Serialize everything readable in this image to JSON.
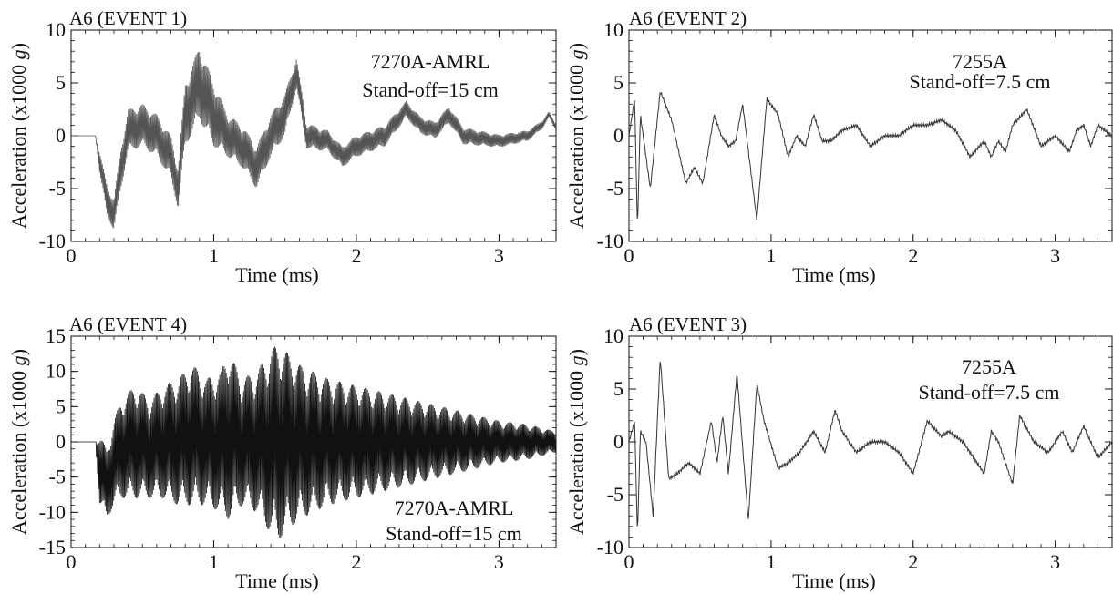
{
  "chart_data": [
    {
      "type": "line",
      "title": "A6 (EVENT 1)",
      "xlabel": "Time (ms)",
      "ylabel_main": "Acceleration (x1000 ",
      "ylabel_unit": "g",
      "ylabel_close": ")",
      "xlim": [
        0,
        3.4
      ],
      "ylim": [
        -10,
        10
      ],
      "xticks": [
        0,
        1,
        2,
        3
      ],
      "yticks": [
        -10,
        -5,
        0,
        5,
        10
      ],
      "annotation": [
        "7270A-AMRL",
        "Stand-off=15 cm"
      ],
      "series": [
        {
          "line_color": "#555555",
          "style": "dense",
          "x": [
            0,
            0.17,
            0.2,
            0.25,
            0.3,
            0.35,
            0.4,
            0.5,
            0.6,
            0.7,
            0.75,
            0.8,
            0.9,
            1.0,
            1.1,
            1.2,
            1.3,
            1.4,
            1.5,
            1.58,
            1.65,
            1.8,
            1.9,
            2.0,
            2.2,
            2.35,
            2.45,
            2.55,
            2.65,
            2.75,
            3.0,
            3.2,
            3.3,
            3.35,
            3.4
          ],
          "y": [
            0,
            0,
            -2.5,
            -6,
            -7.5,
            -3,
            0.5,
            1,
            0,
            -2,
            -5,
            2,
            5,
            2,
            0,
            -1,
            -3,
            0,
            2,
            6,
            0,
            -0.5,
            -2,
            -1,
            0,
            2.5,
            1,
            0.5,
            2,
            0,
            -0.5,
            0,
            1,
            2,
            0.8
          ],
          "amp": [
            0,
            0,
            1,
            1.5,
            1.5,
            2,
            2,
            2,
            2,
            2,
            2,
            3,
            3.5,
            3,
            2,
            2,
            2,
            2,
            2,
            1.5,
            1.2,
            1,
            1,
            1,
            1,
            0.8,
            0.8,
            0.8,
            0.8,
            0.8,
            0.6,
            0.5,
            0.4,
            0.3,
            0.3
          ]
        }
      ]
    },
    {
      "type": "line",
      "title": "A6 (EVENT 2)",
      "xlabel": "Time (ms)",
      "ylabel_main": "Acceleration (x1000 ",
      "ylabel_unit": "g",
      "ylabel_close": ")",
      "xlim": [
        0,
        3.4
      ],
      "ylim": [
        -10,
        10
      ],
      "xticks": [
        0,
        1,
        2,
        3
      ],
      "yticks": [
        -10,
        -5,
        0,
        5,
        10
      ],
      "annotation": [
        "7255A",
        "Stand-off=7.5 cm"
      ],
      "series": [
        {
          "line_color": "#333333",
          "style": "smooth",
          "x": [
            0,
            0.04,
            0.06,
            0.08,
            0.1,
            0.15,
            0.22,
            0.3,
            0.4,
            0.46,
            0.52,
            0.6,
            0.65,
            0.7,
            0.75,
            0.8,
            0.9,
            0.97,
            1.05,
            1.12,
            1.18,
            1.24,
            1.3,
            1.36,
            1.42,
            1.5,
            1.6,
            1.7,
            1.8,
            1.9,
            2.0,
            2.1,
            2.2,
            2.3,
            2.4,
            2.5,
            2.55,
            2.6,
            2.65,
            2.7,
            2.8,
            2.9,
            3.0,
            3.1,
            3.15,
            3.2,
            3.25,
            3.3,
            3.4
          ],
          "y": [
            0,
            3.5,
            -9,
            2,
            0,
            -5,
            4.2,
            1.5,
            -4.5,
            -3,
            -4.5,
            2,
            0,
            -1,
            -0.5,
            3,
            -8,
            3.5,
            2,
            -2,
            0,
            -1,
            2,
            -0.5,
            -0.5,
            0.5,
            1,
            -1,
            0,
            0,
            1,
            1,
            1.5,
            0.5,
            -2,
            -0.5,
            -2,
            -0.5,
            -1.5,
            1,
            2.5,
            -1,
            0,
            -1.5,
            0.5,
            1,
            -1,
            1,
            0
          ]
        }
      ]
    },
    {
      "type": "line",
      "title": "A6 (EVENT 4)",
      "xlabel": "Time (ms)",
      "ylabel_main": "Acceleration (x1000 ",
      "ylabel_unit": "g",
      "ylabel_close": ")",
      "xlim": [
        0,
        3.4
      ],
      "ylim": [
        -15,
        15
      ],
      "xticks": [
        0,
        1,
        2,
        3
      ],
      "yticks": [
        -15,
        -10,
        -5,
        0,
        5,
        10,
        15
      ],
      "annotation": [
        "7270A-AMRL",
        "Stand-off=15 cm"
      ],
      "series": [
        {
          "line_color": "#111111",
          "style": "dense",
          "x": [
            0,
            0.17,
            0.2,
            0.25,
            0.3,
            0.35,
            0.45,
            0.55,
            0.65,
            0.75,
            0.85,
            0.95,
            1.05,
            1.1,
            1.2,
            1.3,
            1.4,
            1.45,
            1.6,
            1.8,
            2.0,
            2.2,
            2.4,
            2.6,
            2.8,
            3.0,
            3.2,
            3.3,
            3.4
          ],
          "y": [
            0,
            0,
            -4,
            -6,
            -3,
            -1,
            0,
            -1,
            0,
            0,
            1,
            0,
            0,
            1,
            0,
            0,
            0,
            0,
            0,
            0,
            0,
            0,
            0,
            0,
            0,
            0,
            0,
            0,
            0
          ],
          "amp": [
            0,
            0,
            5,
            5,
            6,
            7,
            8,
            7,
            8,
            9,
            10,
            9,
            10,
            12,
            9,
            10,
            13,
            14,
            11,
            9,
            8,
            7,
            6,
            5,
            4,
            3,
            2.5,
            2,
            1.5
          ]
        }
      ]
    },
    {
      "type": "line",
      "title": "A6 (EVENT 3)",
      "xlabel": "Time (ms)",
      "ylabel_main": "Acceleration (x1000 ",
      "ylabel_unit": "g",
      "ylabel_close": ")",
      "xlim": [
        0,
        3.4
      ],
      "ylim": [
        -10,
        10
      ],
      "xticks": [
        0,
        1,
        2,
        3
      ],
      "yticks": [
        -10,
        -5,
        0,
        5,
        10
      ],
      "annotation": [
        "7255A",
        "Stand-off=7.5 cm"
      ],
      "series": [
        {
          "line_color": "#333333",
          "style": "smooth",
          "x": [
            0,
            0.04,
            0.06,
            0.08,
            0.12,
            0.17,
            0.22,
            0.28,
            0.34,
            0.42,
            0.5,
            0.58,
            0.62,
            0.66,
            0.7,
            0.76,
            0.84,
            0.9,
            0.95,
            1.05,
            1.12,
            1.2,
            1.3,
            1.38,
            1.45,
            1.5,
            1.6,
            1.7,
            1.8,
            1.9,
            2.0,
            2.1,
            2.2,
            2.25,
            2.35,
            2.5,
            2.55,
            2.6,
            2.7,
            2.75,
            2.85,
            2.95,
            3.05,
            3.12,
            3.2,
            3.3,
            3.4
          ],
          "y": [
            0,
            2,
            -9,
            1,
            0,
            -7,
            8,
            -3.5,
            -3,
            -2,
            -3,
            2,
            -2,
            2.5,
            -3,
            6.5,
            -7.5,
            5.5,
            2,
            -2.5,
            -2,
            -1,
            1,
            -1,
            3,
            1,
            -1,
            0,
            0,
            -1,
            -3,
            2,
            0.5,
            1,
            0,
            -3,
            1,
            0,
            -4,
            2.5,
            0,
            -1,
            1,
            -1,
            1.5,
            -1.5,
            0
          ]
        }
      ]
    }
  ]
}
